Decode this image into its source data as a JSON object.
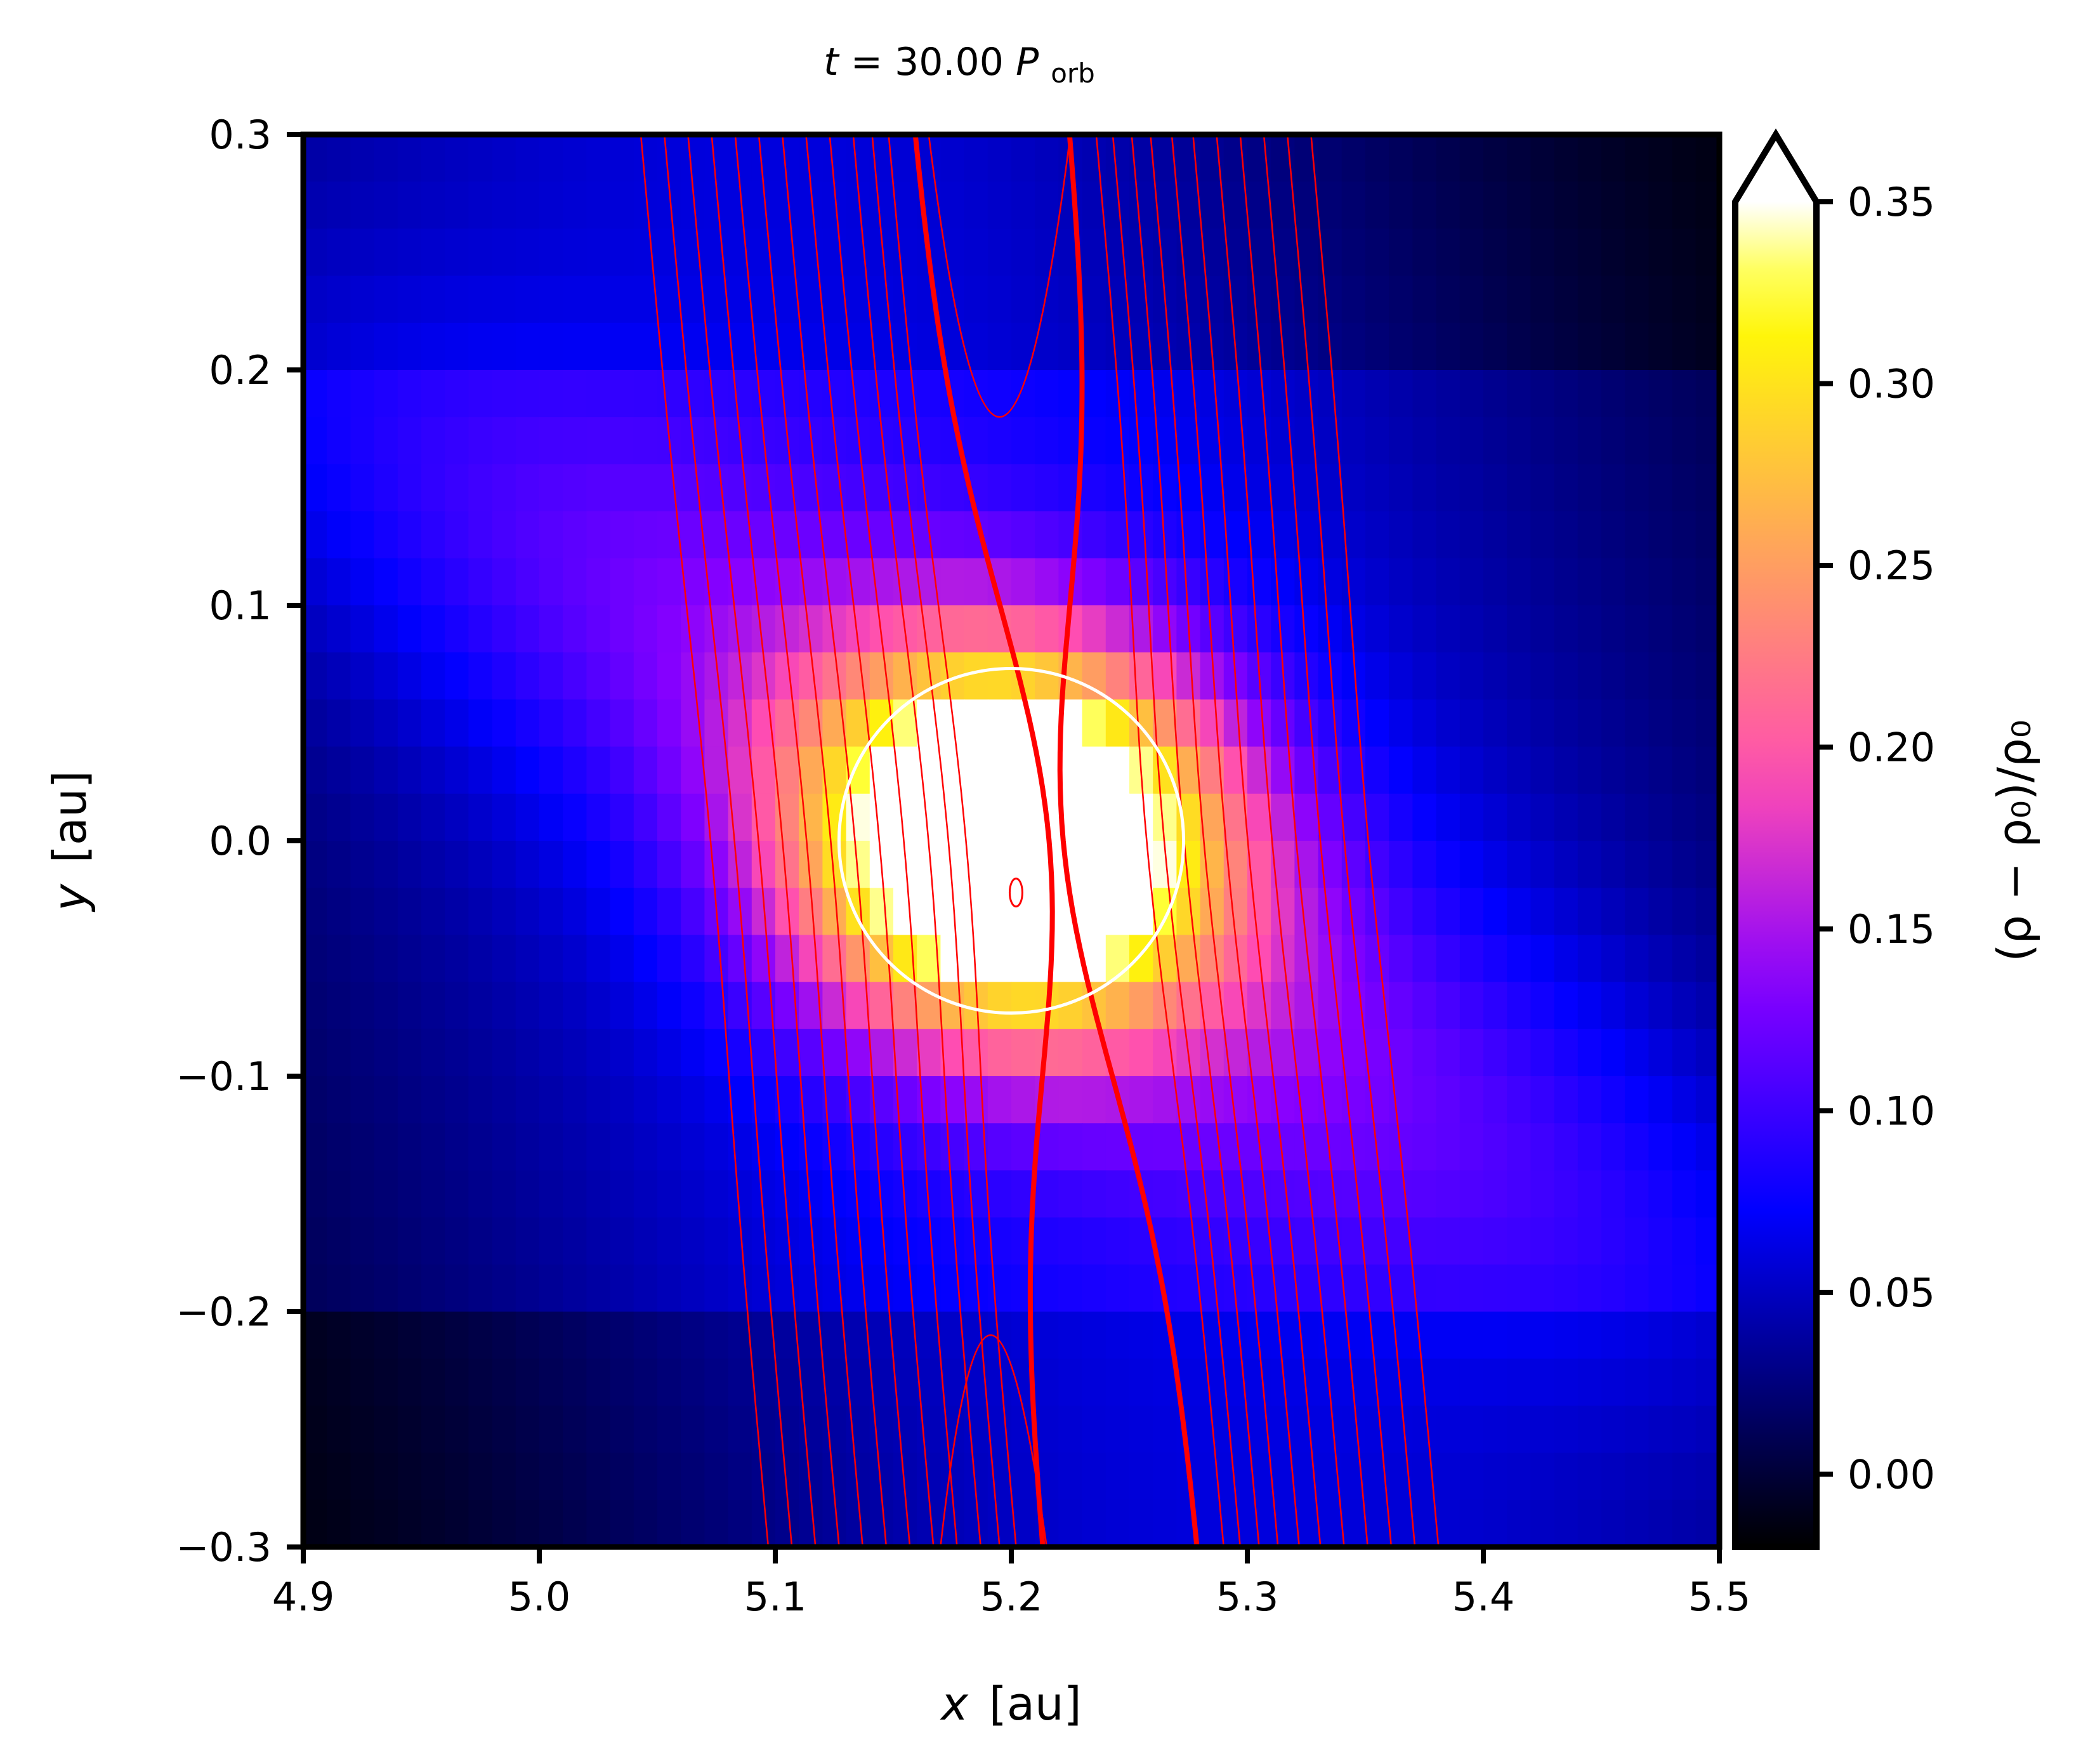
{
  "chart_data": {
    "type": "heatmap",
    "title": "t = 30.00 P_orb",
    "title_parts": {
      "lhs": "t",
      "eq": "=  30.00 ",
      "sym": "P",
      "sub": "orb"
    },
    "xlabel": {
      "var": "x",
      "unit": "[au]"
    },
    "ylabel": {
      "var": "y",
      "unit": "[au]"
    },
    "xlim": [
      4.9,
      5.5
    ],
    "ylim": [
      -0.3,
      0.3
    ],
    "xticks": [
      "4.9",
      "5.0",
      "5.1",
      "5.2",
      "5.3",
      "5.4",
      "5.5"
    ],
    "yticks": [
      "−0.3",
      "−0.2",
      "−0.1",
      "0.0",
      "0.1",
      "0.2",
      "0.3"
    ],
    "colorbar": {
      "label": "(ρ − ρ₀)/ρ₀",
      "range": [
        -0.02,
        0.35
      ],
      "extend": "max",
      "ticks": [
        "0.00",
        "0.05",
        "0.10",
        "0.15",
        "0.20",
        "0.25",
        "0.30",
        "0.35"
      ],
      "colormap": "gnuplot2"
    },
    "planet": {
      "x": 5.2,
      "y": 0.0
    },
    "hill_circle": {
      "x": 5.2,
      "y": 0.0,
      "radius": 0.073,
      "color": "#ffffff"
    },
    "heatmap_model": {
      "peak_x": 5.2,
      "max_value": 0.5,
      "description_values": {
        "core_amplitude": 0.38,
        "background_amplitude": 0.09
      }
    },
    "streamlines": {
      "color": "#ff0000",
      "thin_x_offsets_at_bottom": [
        5.052,
        5.062,
        5.072,
        5.082,
        5.092,
        5.102,
        5.112,
        5.122,
        5.132,
        5.142,
        5.15,
        5.157,
        5.245,
        5.252,
        5.26,
        5.268,
        5.277,
        5.286,
        5.296,
        5.306,
        5.316,
        5.326,
        5.336
      ],
      "separatrix_left_bottom": 5.168,
      "separatrix_right_bottom": 5.234
    }
  }
}
